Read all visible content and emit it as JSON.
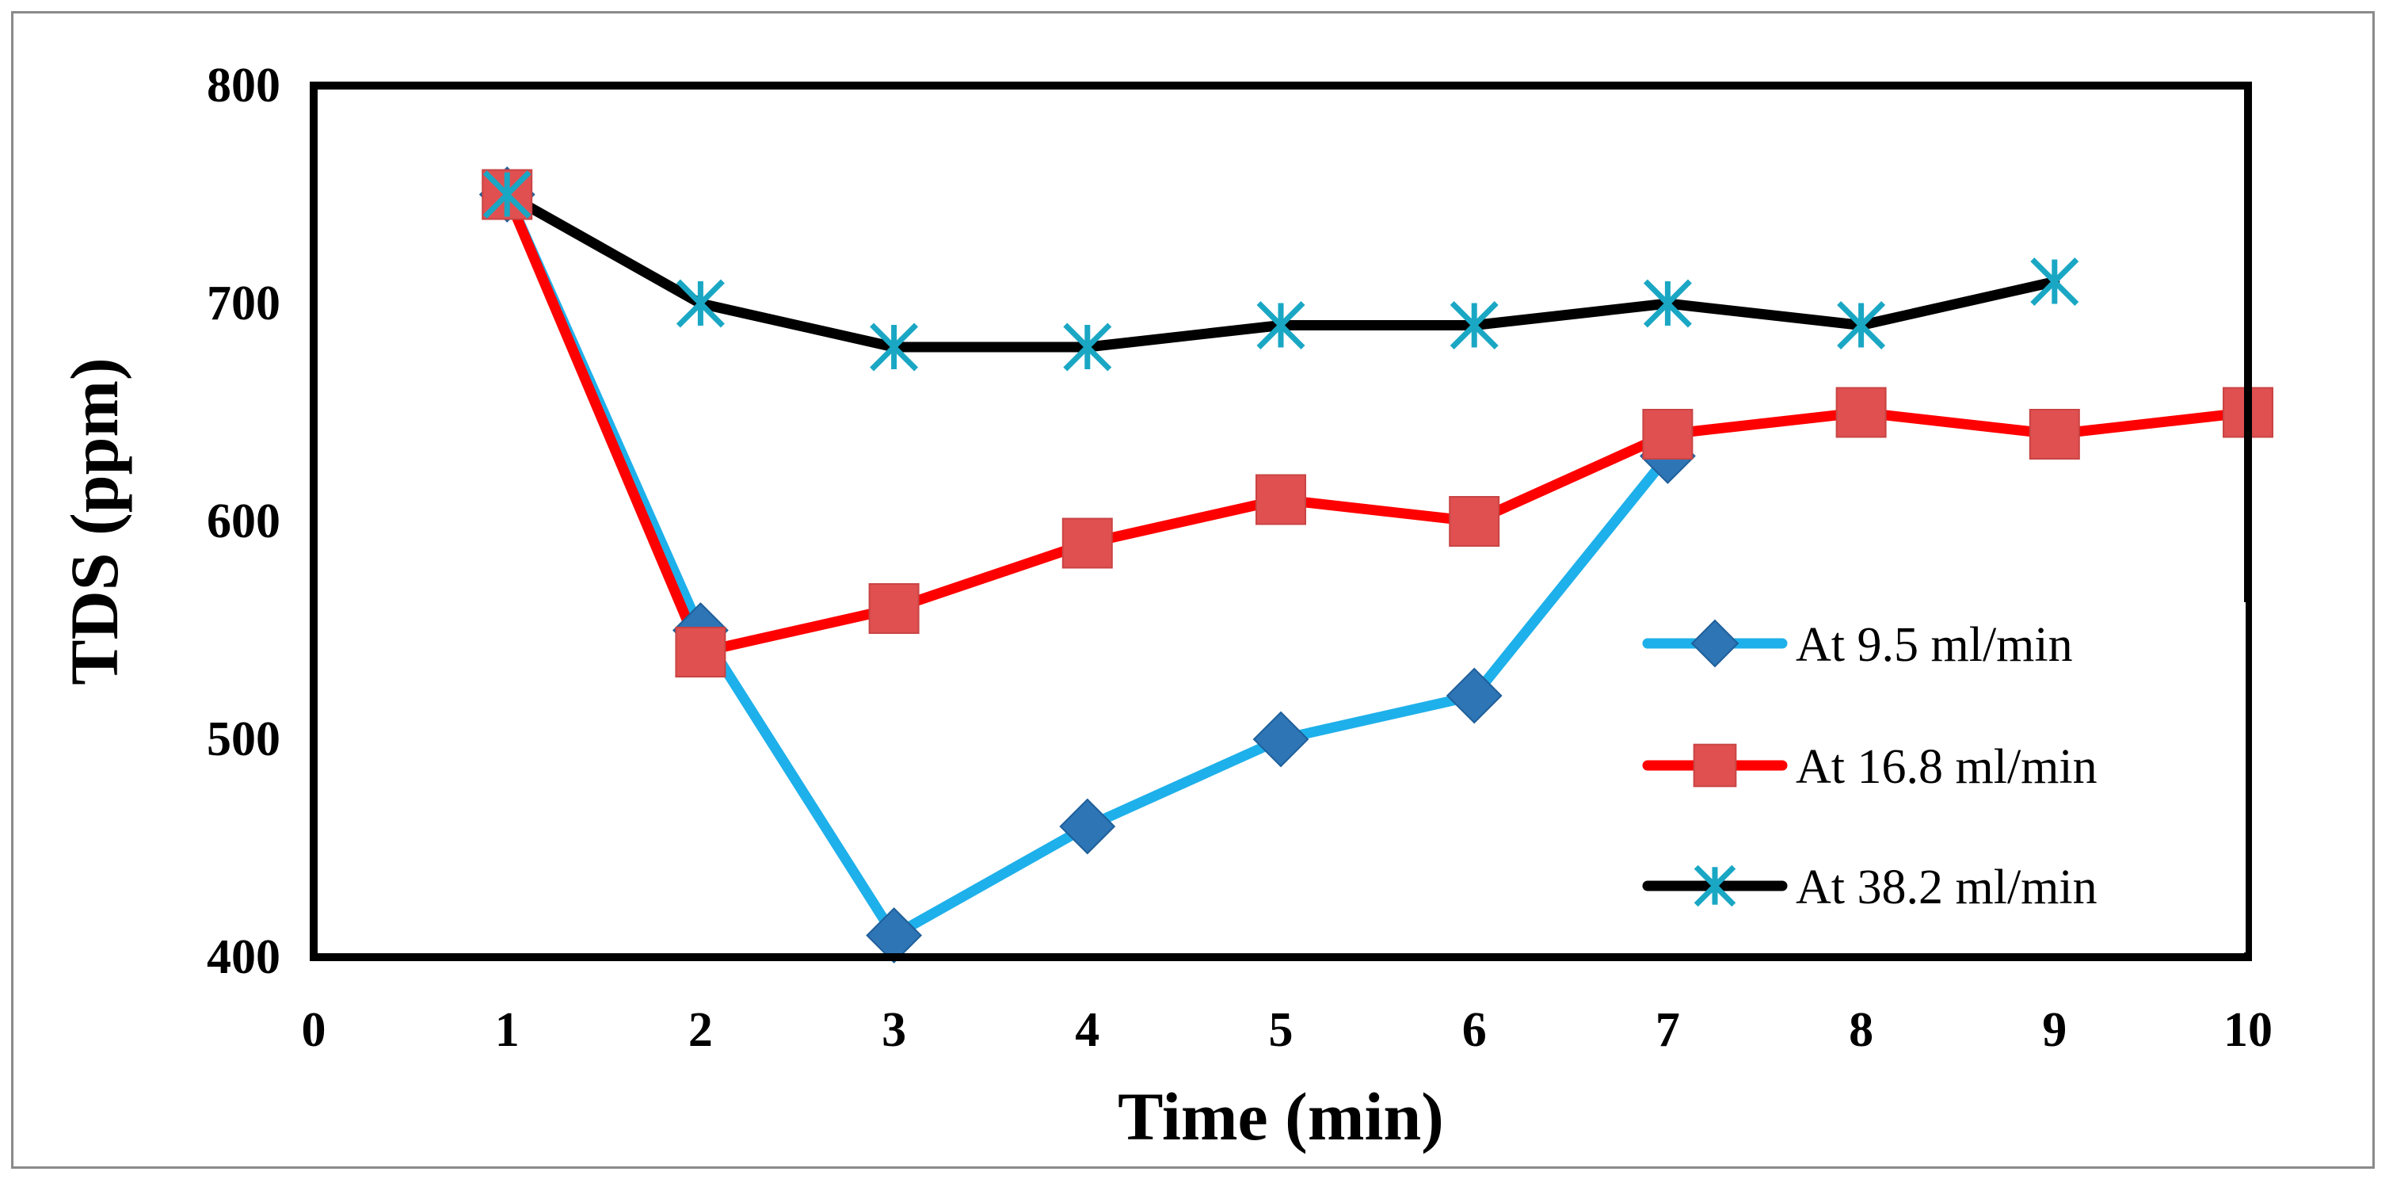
{
  "chart_data": {
    "type": "line",
    "title": "",
    "xlabel": "Time (min)",
    "ylabel": "TDS (ppm)",
    "xlim": [
      0,
      10
    ],
    "ylim": [
      400,
      800
    ],
    "x_ticks": [
      "0",
      "1",
      "2",
      "3",
      "4",
      "5",
      "6",
      "7",
      "8",
      "9",
      "10"
    ],
    "y_ticks": [
      "400",
      "500",
      "600",
      "700",
      "800"
    ],
    "grid": false,
    "legend_position": "bottom-right",
    "series": [
      {
        "name": "At 9.5 ml/min",
        "marker": "diamond",
        "line_color": "#1EB0EA",
        "marker_color": "#2E75B6",
        "x": [
          1,
          2,
          3,
          4,
          5,
          6,
          7
        ],
        "values": [
          750,
          550,
          410,
          460,
          500,
          520,
          630
        ]
      },
      {
        "name": "At 16.8 ml/min",
        "marker": "square",
        "line_color": "#FF0000",
        "marker_color": "#E05050",
        "x": [
          1,
          2,
          3,
          4,
          5,
          6,
          7,
          8,
          9,
          10
        ],
        "values": [
          750,
          540,
          560,
          590,
          610,
          600,
          640,
          650,
          640,
          650
        ]
      },
      {
        "name": "At 38.2 ml/min",
        "marker": "star",
        "line_color": "#000000",
        "marker_color": "#1AA7C4",
        "x": [
          1,
          2,
          3,
          4,
          5,
          6,
          7,
          8,
          9
        ],
        "values": [
          750,
          700,
          680,
          680,
          690,
          690,
          700,
          690,
          710
        ]
      }
    ]
  }
}
